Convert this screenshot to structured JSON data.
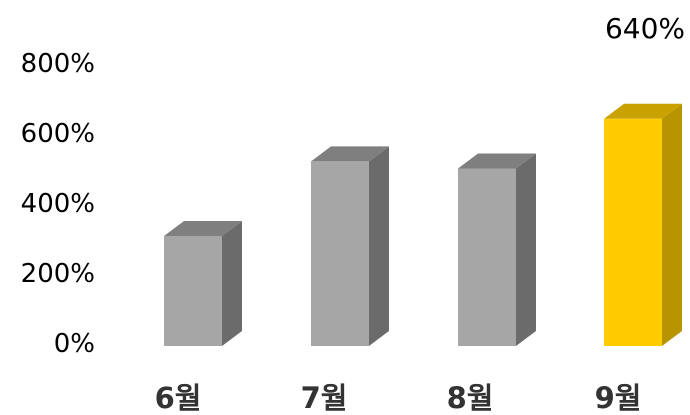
{
  "chart_data": {
    "type": "bar",
    "style": "3d-column",
    "categories": [
      "6월",
      "7월",
      "8월",
      "9월"
    ],
    "values": [
      310,
      520,
      500,
      640
    ],
    "y_ticks": [
      "0%",
      "200%",
      "400%",
      "600%",
      "800%"
    ],
    "ylim": [
      0,
      800
    ],
    "grid": false,
    "legend": "none",
    "highlighted_category": "9월",
    "data_labels": [
      {
        "category": "9월",
        "text": "640%"
      }
    ]
  },
  "colors": {
    "default_front": "#a6a6a6",
    "default_top": "#7f7f7f",
    "default_side": "#6b6b6b",
    "highlight_front": "#ffcc00",
    "highlight_top": "#c9a200",
    "highlight_side": "#b89400"
  }
}
